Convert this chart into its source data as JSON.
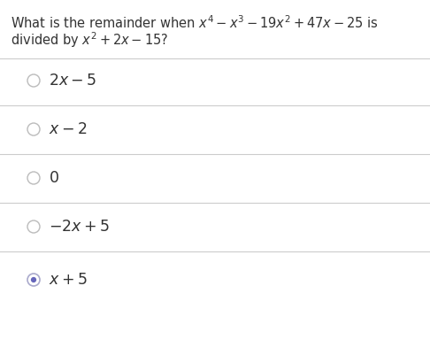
{
  "background_color": "#ffffff",
  "question_parts": [
    {
      "text": "What is the remainder when ",
      "math": false
    },
    {
      "text": "$x^4 - x^3 - 19x^2 + 47x - 25$",
      "math": true
    },
    {
      "text": " is",
      "math": false
    }
  ],
  "question_line2_parts": [
    {
      "text": "divided by ",
      "math": false
    },
    {
      "text": "$x^2 + 2x - 15$",
      "math": true
    },
    {
      "text": "?",
      "math": false
    }
  ],
  "options": [
    {
      "label": "$2x - 5$",
      "selected": false
    },
    {
      "label": "$x - 2$",
      "selected": false
    },
    {
      "label": "$0$",
      "selected": false
    },
    {
      "label": "$-2x + 5$",
      "selected": false
    },
    {
      "label": "$x + 5$",
      "selected": true
    }
  ],
  "divider_color": "#cccccc",
  "text_color": "#333333",
  "circle_edgecolor": "#bbbbbb",
  "selected_ring_color": "#aaaacc",
  "selected_dot_color": "#6666bb",
  "question_fontsize": 10.5,
  "option_fontsize": 12.5,
  "fig_width": 4.86,
  "fig_height": 3.84,
  "dpi": 100
}
